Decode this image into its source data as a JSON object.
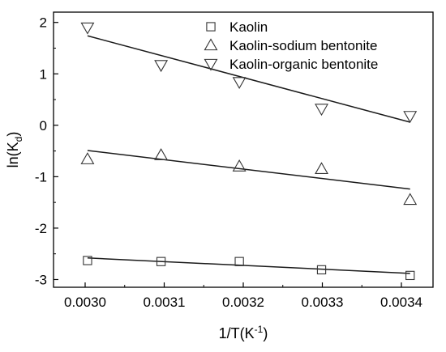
{
  "chart_data": {
    "type": "scatter",
    "title": "",
    "xlabel": "1/T(K",
    "xlabel_sup": "-1",
    "xlabel_suffix": ")",
    "ylabel": "ln(K",
    "ylabel_sub": "d",
    "ylabel_suffix": ")",
    "xlim": [
      0.00296,
      0.00344
    ],
    "ylim": [
      -3.15,
      2.2
    ],
    "x_ticks": [
      0.003,
      0.0031,
      0.0032,
      0.0033,
      0.0034
    ],
    "x_tick_labels": [
      "0.0030",
      "0.0031",
      "0.0032",
      "0.0033",
      "0.0034"
    ],
    "y_ticks": [
      -3,
      -2,
      -1,
      0,
      1,
      2
    ],
    "y_tick_labels": [
      "-3",
      "-2",
      "-1",
      "0",
      "1",
      "2"
    ],
    "grid": false,
    "legend_position": "top-right",
    "series": [
      {
        "name": "Kaolin",
        "marker": "square",
        "x": [
          0.003003,
          0.003096,
          0.003195,
          0.003299,
          0.003411
        ],
        "y": [
          -2.63,
          -2.65,
          -2.65,
          -2.81,
          -2.92
        ],
        "fit_line": {
          "x": [
            0.003003,
            0.003411
          ],
          "y": [
            -2.58,
            -2.88
          ]
        }
      },
      {
        "name": "Kaolin-sodium bentonite",
        "marker": "triangle-up",
        "x": [
          0.003003,
          0.003096,
          0.003195,
          0.003299,
          0.003411
        ],
        "y": [
          -0.66,
          -0.58,
          -0.8,
          -0.85,
          -1.45
        ],
        "fit_line": {
          "x": [
            0.003003,
            0.003411
          ],
          "y": [
            -0.49,
            -1.24
          ]
        }
      },
      {
        "name": "Kaolin-organic bentonite",
        "marker": "triangle-down",
        "x": [
          0.003003,
          0.003096,
          0.003195,
          0.003299,
          0.003411
        ],
        "y": [
          1.9,
          1.17,
          0.84,
          0.32,
          0.18
        ],
        "fit_line": {
          "x": [
            0.003003,
            0.003411
          ],
          "y": [
            1.74,
            0.06
          ]
        }
      }
    ]
  }
}
